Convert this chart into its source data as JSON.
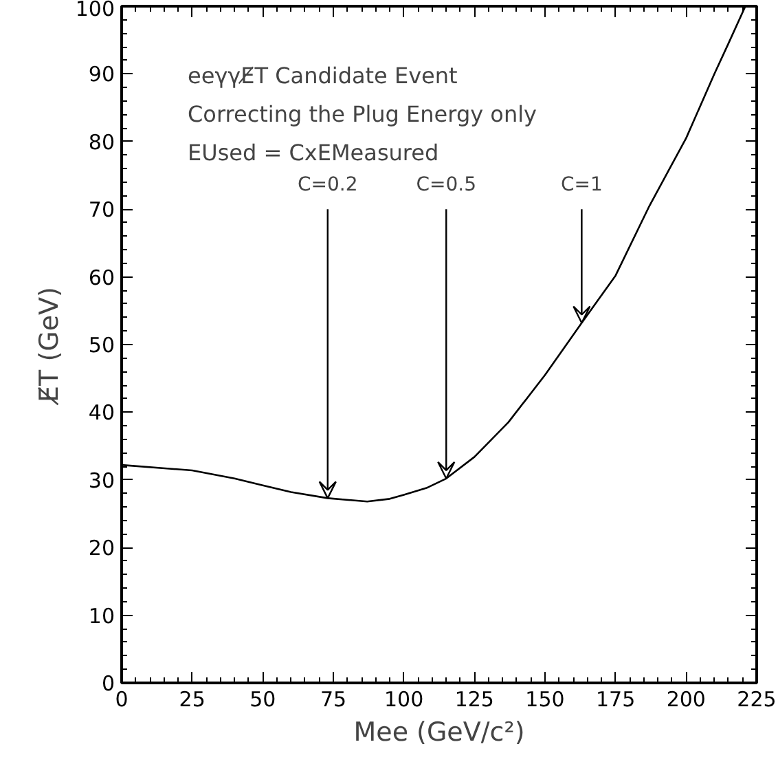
{
  "chart_data": {
    "type": "line",
    "xlabel": "Mee (GeV/c²)",
    "ylabel": "E̸T (GeV)",
    "x": [
      0,
      25,
      40,
      50,
      60,
      73,
      87,
      95,
      100,
      108,
      115,
      125,
      137,
      150,
      163,
      175,
      187,
      200,
      210,
      215,
      221
    ],
    "series": [
      {
        "color": "#000000",
        "values": [
          32.2,
          31.4,
          30.2,
          29.2,
          28.2,
          27.3,
          26.8,
          27.2,
          27.8,
          28.8,
          30.2,
          33.4,
          38.5,
          45.5,
          53.2,
          60.2,
          70.5,
          80.5,
          90,
          94.5,
          100
        ]
      }
    ],
    "xlim": [
      0,
      225
    ],
    "ylim": [
      0,
      100
    ],
    "xticks": [
      0,
      25,
      50,
      75,
      100,
      125,
      150,
      175,
      200,
      225
    ],
    "yticks": [
      0,
      10,
      20,
      30,
      40,
      50,
      60,
      70,
      80,
      90,
      100
    ],
    "grid": false,
    "marker": "none",
    "line_style": "solid",
    "annotations": [
      "eeγγE̸T Candidate Event",
      "Correcting the Plug Energy only",
      "EUsed = CxEMeasured",
      {
        "text": "C=0.2",
        "x": 73,
        "y": 27.3
      },
      {
        "text": "C=0.5",
        "x": 115,
        "y": 30.2
      },
      {
        "text": "C=1",
        "x": 163,
        "y": 53.2
      }
    ]
  }
}
